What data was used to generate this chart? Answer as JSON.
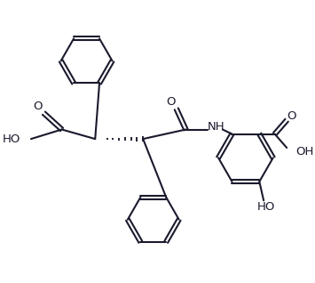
{
  "bg_color": "#ffffff",
  "line_color": "#1a1a2e",
  "line_width": 1.5,
  "font_size": 9.5,
  "figsize": [
    3.55,
    3.18
  ],
  "dpi": 100,
  "xlim": [
    0,
    355
  ],
  "ylim": [
    0,
    318
  ]
}
